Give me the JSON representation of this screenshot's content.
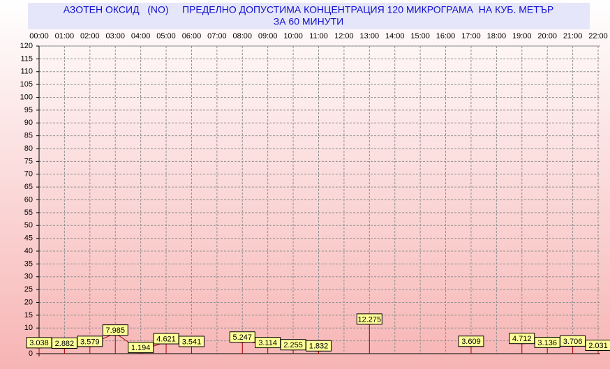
{
  "chart_data": {
    "type": "line",
    "title": "АЗОТЕН ОКСИД   (NO)     ПРЕДЕЛНО ДОПУСТИМА КОНЦЕНТРАЦИЯ 120 МИКРОГРАМА  НА КУБ. МЕТЪР",
    "subtitle": "ЗА 60 МИНУТИ",
    "categories": [
      "00:00",
      "01:00",
      "02:00",
      "03:00",
      "04:00",
      "05:00",
      "06:00",
      "07:00",
      "08:00",
      "09:00",
      "10:00",
      "11:00",
      "12:00",
      "13:00",
      "14:00",
      "15:00",
      "16:00",
      "17:00",
      "18:00",
      "19:00",
      "20:00",
      "21:00",
      "22:00"
    ],
    "series": [
      {
        "name": "NO",
        "color": "#b00000",
        "values": [
          3.038,
          2.882,
          3.579,
          7.985,
          1.194,
          4.621,
          3.541,
          null,
          5.247,
          3.114,
          2.255,
          1.832,
          null,
          12.275,
          null,
          null,
          null,
          3.609,
          null,
          4.712,
          3.136,
          3.706,
          2.031
        ]
      }
    ],
    "ylim": [
      0,
      120
    ],
    "yticks": [
      0,
      5,
      10,
      15,
      20,
      25,
      30,
      35,
      40,
      45,
      50,
      55,
      60,
      65,
      70,
      75,
      80,
      85,
      90,
      95,
      100,
      105,
      110,
      115,
      120
    ],
    "grid": true
  }
}
